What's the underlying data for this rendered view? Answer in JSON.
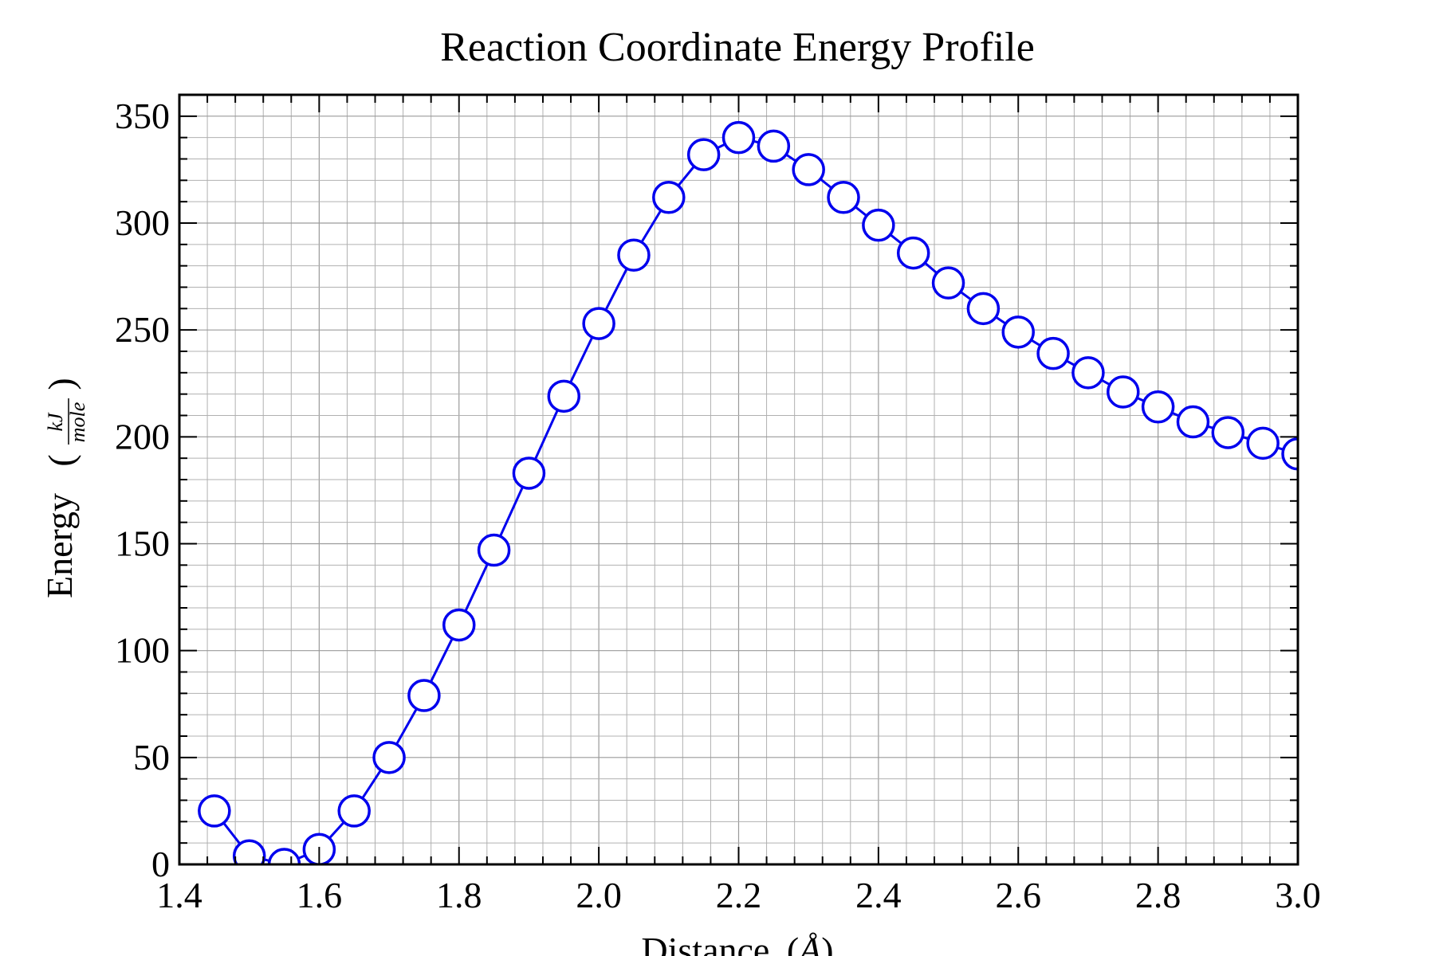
{
  "chart_data": {
    "type": "line",
    "title": "Reaction Coordinate Energy Profile",
    "xlabel": "Distance",
    "xlabel_unit": "Å",
    "ylabel": "Energy",
    "ylabel_unit_numerator": "kJ",
    "ylabel_unit_denominator": "mole",
    "xlim": [
      1.4,
      3.0
    ],
    "ylim": [
      0,
      360
    ],
    "xticks": [
      "1.4",
      "1.6",
      "1.8",
      "2.0",
      "2.2",
      "2.4",
      "2.6",
      "2.8",
      "3.0"
    ],
    "yticks": [
      "0",
      "50",
      "100",
      "150",
      "200",
      "250",
      "300",
      "350"
    ],
    "grid": true,
    "series": [
      {
        "color": "#0000ee",
        "marker": "open-circle",
        "x": [
          1.45,
          1.5,
          1.55,
          1.6,
          1.65,
          1.7,
          1.75,
          1.8,
          1.85,
          1.9,
          1.95,
          2.0,
          2.05,
          2.1,
          2.15,
          2.2,
          2.25,
          2.3,
          2.35,
          2.4,
          2.45,
          2.5,
          2.55,
          2.6,
          2.65,
          2.7,
          2.75,
          2.8,
          2.85,
          2.9,
          2.95,
          3.0
        ],
        "y": [
          25,
          4,
          0,
          7,
          25,
          50,
          79,
          112,
          147,
          183,
          219,
          253,
          285,
          312,
          332,
          340,
          336,
          325,
          312,
          299,
          286,
          272,
          260,
          249,
          239,
          230,
          221,
          214,
          207,
          202,
          197,
          192
        ]
      }
    ]
  }
}
